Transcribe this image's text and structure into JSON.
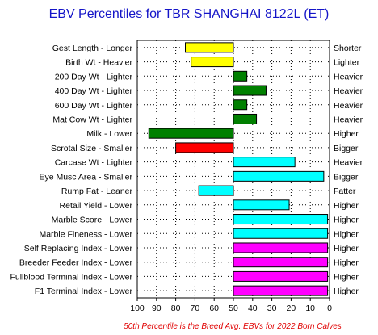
{
  "chart_data": {
    "type": "bar",
    "title": "EBV Percentiles for TBR SHANGHAI 8122L (ET)",
    "footnote": "50th Percentile is the Breed Avg. EBVs for 2022 Born Calves",
    "xlim": [
      100,
      0
    ],
    "x_ticks": [
      "100",
      "90",
      "80",
      "70",
      "60",
      "50",
      "40",
      "30",
      "20",
      "10",
      "0"
    ],
    "grid": true,
    "baseline": 50,
    "rows": [
      {
        "left_label": "Gest Length - Longer",
        "right_label": "Shorter",
        "value": 75,
        "color": "#ffff00"
      },
      {
        "left_label": "Birth Wt - Heavier",
        "right_label": "Lighter",
        "value": 72,
        "color": "#ffff00"
      },
      {
        "left_label": "200 Day Wt - Lighter",
        "right_label": "Heavier",
        "value": 43,
        "color": "#008000"
      },
      {
        "left_label": "400 Day Wt - Lighter",
        "right_label": "Heavier",
        "value": 33,
        "color": "#008000"
      },
      {
        "left_label": "600 Day Wt - Lighter",
        "right_label": "Heavier",
        "value": 43,
        "color": "#008000"
      },
      {
        "left_label": "Mat Cow Wt - Lighter",
        "right_label": "Heavier",
        "value": 38,
        "color": "#008000"
      },
      {
        "left_label": "Milk - Lower",
        "right_label": "Higher",
        "value": 94,
        "color": "#008000"
      },
      {
        "left_label": "Scrotal Size - Smaller",
        "right_label": "Bigger",
        "value": 80,
        "color": "#ff0000"
      },
      {
        "left_label": "Carcase Wt - Lighter",
        "right_label": "Heavier",
        "value": 18,
        "color": "#00ffff"
      },
      {
        "left_label": "Eye Musc Area - Smaller",
        "right_label": "Bigger",
        "value": 3,
        "color": "#00ffff"
      },
      {
        "left_label": "Rump Fat - Leaner",
        "right_label": "Fatter",
        "value": 68,
        "color": "#00ffff"
      },
      {
        "left_label": "Retail Yield - Lower",
        "right_label": "Higher",
        "value": 21,
        "color": "#00ffff"
      },
      {
        "left_label": "Marble Score - Lower",
        "right_label": "Higher",
        "value": 1,
        "color": "#00ffff"
      },
      {
        "left_label": "Marble Fineness - Lower",
        "right_label": "Higher",
        "value": 1,
        "color": "#00ffff"
      },
      {
        "left_label": "Self Replacing Index - Lower",
        "right_label": "Higher",
        "value": 1,
        "color": "#ff00ff"
      },
      {
        "left_label": "Breeder Feeder Index - Lower",
        "right_label": "Higher",
        "value": 1,
        "color": "#ff00ff"
      },
      {
        "left_label": "Fullblood Terminal Index - Lower",
        "right_label": "Higher",
        "value": 1,
        "color": "#ff00ff"
      },
      {
        "left_label": "F1 Terminal Index - Lower",
        "right_label": "Higher",
        "value": 1,
        "color": "#ff00ff"
      }
    ]
  }
}
